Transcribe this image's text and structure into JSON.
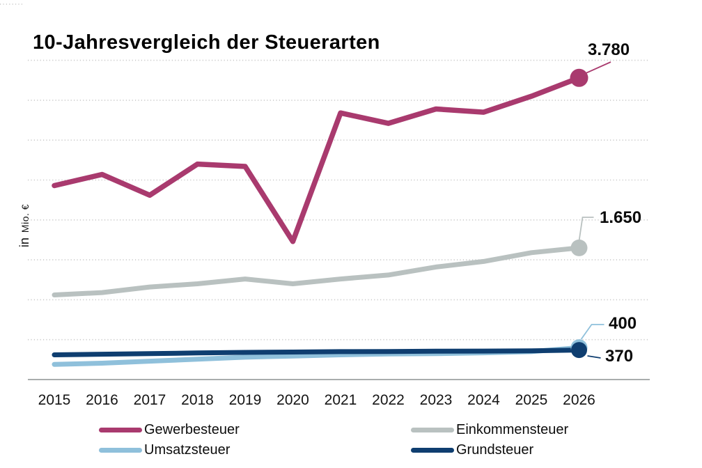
{
  "title": "10-Jahresvergleich der Steuerarten",
  "y_axis": {
    "prefix": "in",
    "suffix": "Mio. €",
    "full_label": "in Mio. €"
  },
  "chart_data": {
    "type": "line",
    "title": "10-Jahresvergleich der Steuerarten",
    "ylabel": "in Mio. €",
    "xlabel": "",
    "x": [
      2015,
      2016,
      2017,
      2018,
      2019,
      2020,
      2021,
      2022,
      2023,
      2024,
      2025,
      2026
    ],
    "ylim": [
      0,
      4000
    ],
    "gridline_step": 500,
    "grid": "horizontal-dotted",
    "legend_position": "bottom",
    "axis_color": "#a9adad",
    "gridline_color": "#c9c9c9",
    "series": [
      {
        "name": "Gewerbesteuer",
        "color": "#a93a6e",
        "end_label": "3.780",
        "end_value": 3780,
        "values": [
          2430,
          2570,
          2310,
          2700,
          2670,
          1730,
          3340,
          3210,
          3390,
          3350,
          3550,
          3780
        ]
      },
      {
        "name": "Einkommensteuer",
        "color": "#b9c1c0",
        "end_label": "1.650",
        "end_value": 1650,
        "values": [
          1060,
          1090,
          1160,
          1200,
          1260,
          1200,
          1260,
          1310,
          1410,
          1480,
          1590,
          1650
        ]
      },
      {
        "name": "Umsatzsteuer",
        "color": "#8fc0db",
        "end_label": "400",
        "end_value": 400,
        "values": [
          190,
          205,
          230,
          255,
          280,
          295,
          310,
          320,
          325,
          335,
          350,
          400
        ]
      },
      {
        "name": "Grundsteuer",
        "color": "#0f3e70",
        "end_label": "370",
        "end_value": 370,
        "values": [
          310,
          318,
          325,
          333,
          340,
          345,
          350,
          352,
          355,
          357,
          360,
          370
        ]
      }
    ]
  }
}
